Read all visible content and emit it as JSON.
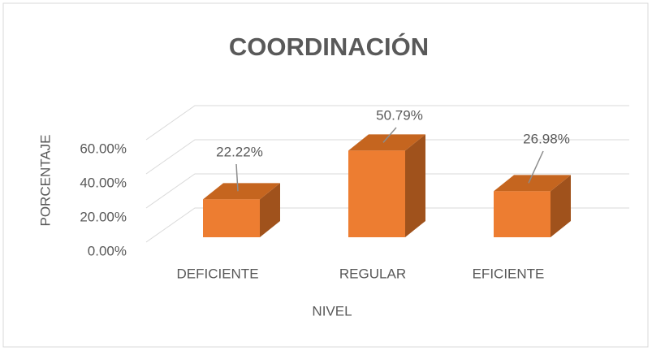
{
  "chart_data": {
    "type": "bar3d",
    "title": "COORDINACIÓN",
    "x_label": "NIVEL",
    "y_label": "PORCENTAJE",
    "categories": [
      "DEFICIENTE",
      "REGULAR",
      "EFICIENTE"
    ],
    "values": [
      22.22,
      50.79,
      26.98
    ],
    "value_labels": [
      "22.22%",
      "50.79%",
      "26.98%"
    ],
    "color": "#ed7d31",
    "ylim": [
      0,
      60
    ],
    "yticks": [
      {
        "value": 0,
        "label": "0.00%"
      },
      {
        "value": 20,
        "label": "20.00%"
      },
      {
        "value": 40,
        "label": "40.00%"
      },
      {
        "value": 60,
        "label": "60.00%"
      }
    ],
    "grid": true
  }
}
